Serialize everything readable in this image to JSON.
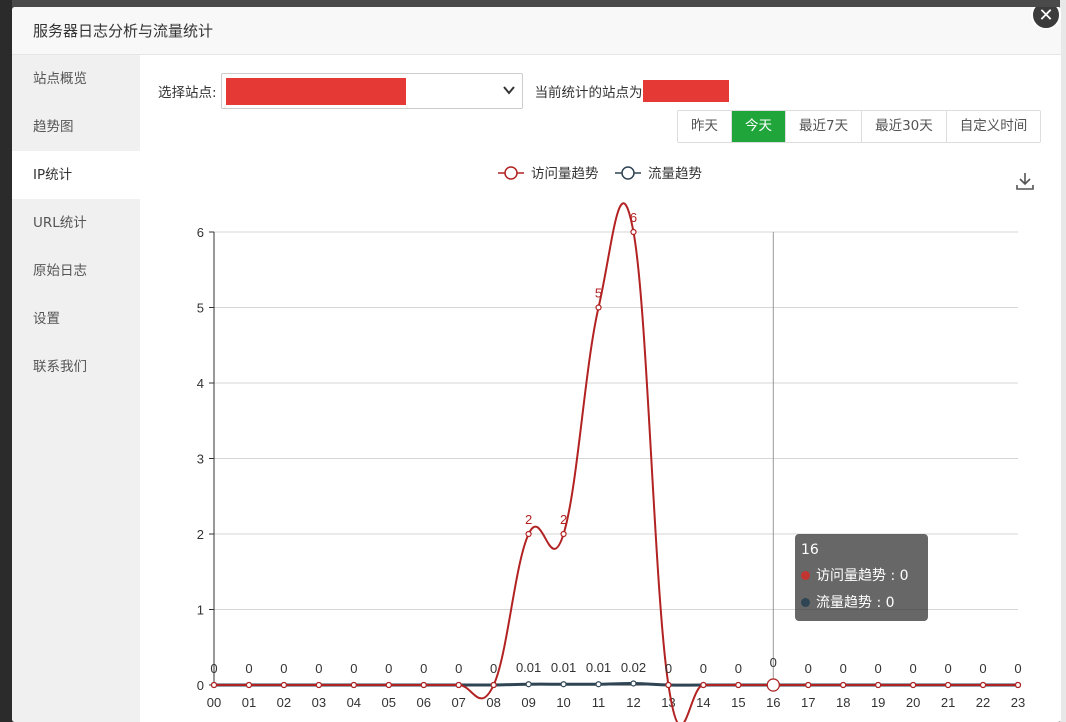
{
  "modal": {
    "title": "服务器日志分析与流量统计",
    "close_icon": "✕"
  },
  "sidebar": {
    "items": [
      {
        "label": "站点概览"
      },
      {
        "label": "趋势图"
      },
      {
        "label": "IP统计"
      },
      {
        "label": "URL统计"
      },
      {
        "label": "原始日志"
      },
      {
        "label": "设置"
      },
      {
        "label": "联系我们"
      }
    ],
    "active_index": 2
  },
  "toolbar": {
    "site_label": "选择站点:",
    "select_arrow": "⌄",
    "current_label": "当前统计的站点为"
  },
  "range": {
    "buttons": [
      "昨天",
      "今天",
      "最近7天",
      "最近30天",
      "自定义时间"
    ],
    "active": "今天"
  },
  "chart_data": {
    "type": "line",
    "categories": [
      "00",
      "01",
      "02",
      "03",
      "04",
      "05",
      "06",
      "07",
      "08",
      "09",
      "10",
      "11",
      "12",
      "13",
      "14",
      "15",
      "16",
      "17",
      "18",
      "19",
      "20",
      "21",
      "22",
      "23"
    ],
    "series": [
      {
        "name": "访问量趋势",
        "color": "#b22222",
        "values": [
          0,
          0,
          0,
          0,
          0,
          0,
          0,
          0,
          0,
          2,
          2,
          5,
          6,
          0,
          0,
          0,
          0,
          0,
          0,
          0,
          0,
          0,
          0,
          0
        ]
      },
      {
        "name": "流量趋势",
        "color": "#2f4554",
        "values": [
          0,
          0,
          0,
          0,
          0,
          0,
          0,
          0,
          0,
          0.01,
          0.01,
          0.01,
          0.02,
          0,
          0,
          0,
          0,
          0,
          0,
          0,
          0,
          0,
          0,
          0
        ]
      }
    ],
    "y_ticks": [
      "0",
      "1",
      "2",
      "3",
      "4",
      "5",
      "6"
    ],
    "ylim": [
      0,
      6
    ],
    "grid": true,
    "legend": "top-center",
    "xlabel": "",
    "ylabel": "",
    "highlight_category": "16"
  },
  "tooltip": {
    "title": "16",
    "rows": [
      {
        "text": "访问量趋势 : 0",
        "color": "#c23531"
      },
      {
        "text": "流量趋势 : 0",
        "color": "#2f4554"
      }
    ]
  },
  "icons": {
    "download": "download-icon"
  }
}
